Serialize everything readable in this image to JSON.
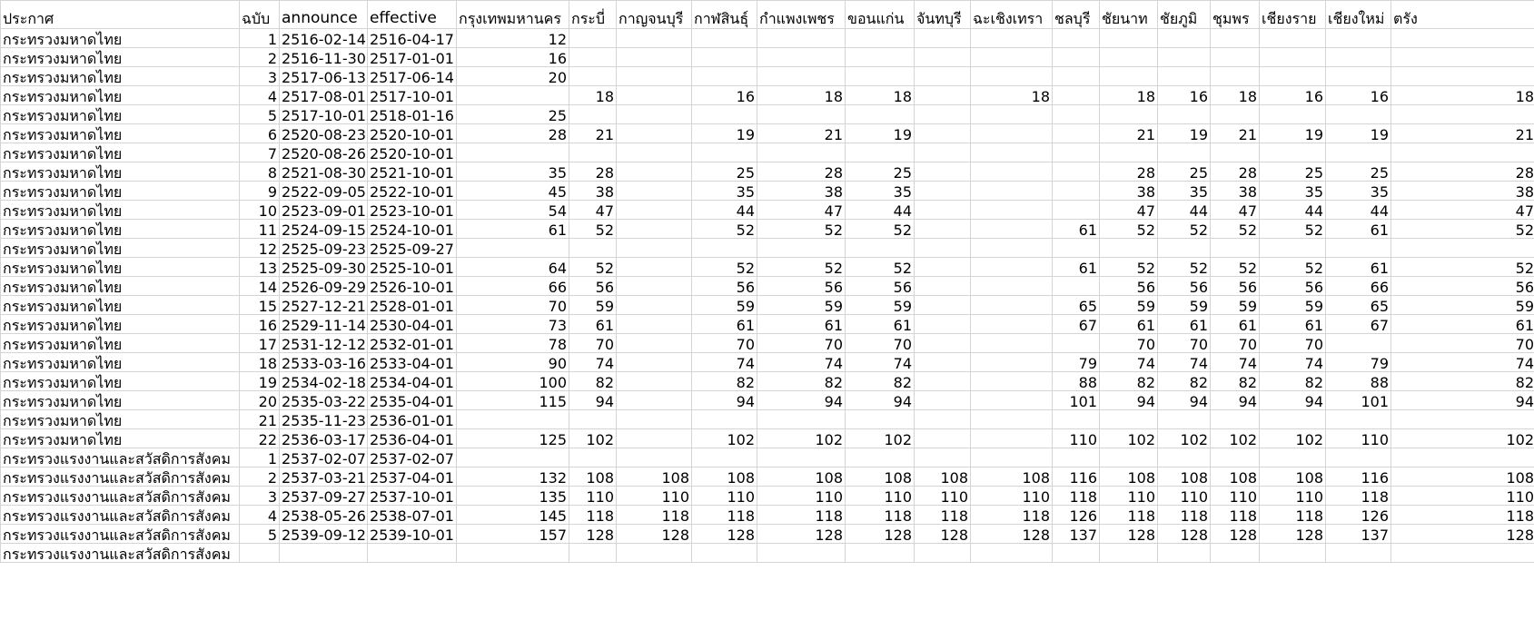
{
  "sheet": {
    "columns": [
      "ประกาศ",
      "ฉบับ",
      "announce",
      "effective",
      "กรุงเทพมหานคร",
      "กระบี่",
      "กาญจนบุรี",
      "กาฬสินธุ์",
      "กำแพงเพชร",
      "ขอนแก่น",
      "จันทบุรี",
      "ฉะเชิงเทรา",
      "ชลบุรี",
      "ชัยนาท",
      "ชัยภูมิ",
      "ชุมพร",
      "เชียงราย",
      "เชียงใหม่",
      "ตรัง"
    ],
    "rows": [
      [
        "กระทรวงมหาดไทย",
        "1",
        "2516-02-14",
        "2516-04-17",
        "12",
        "",
        "",
        "",
        "",
        "",
        "",
        "",
        "",
        "",
        "",
        "",
        "",
        "",
        ""
      ],
      [
        "กระทรวงมหาดไทย",
        "2",
        "2516-11-30",
        "2517-01-01",
        "16",
        "",
        "",
        "",
        "",
        "",
        "",
        "",
        "",
        "",
        "",
        "",
        "",
        "",
        ""
      ],
      [
        "กระทรวงมหาดไทย",
        "3",
        "2517-06-13",
        "2517-06-14",
        "20",
        "",
        "",
        "",
        "",
        "",
        "",
        "",
        "",
        "",
        "",
        "",
        "",
        "",
        ""
      ],
      [
        "กระทรวงมหาดไทย",
        "4",
        "2517-08-01",
        "2517-10-01",
        "",
        "18",
        "",
        "16",
        "18",
        "18",
        "",
        "18",
        "",
        "18",
        "16",
        "18",
        "16",
        "16",
        "18"
      ],
      [
        "กระทรวงมหาดไทย",
        "5",
        "2517-10-01",
        "2518-01-16",
        "25",
        "",
        "",
        "",
        "",
        "",
        "",
        "",
        "",
        "",
        "",
        "",
        "",
        "",
        ""
      ],
      [
        "กระทรวงมหาดไทย",
        "6",
        "2520-08-23",
        "2520-10-01",
        "28",
        "21",
        "",
        "19",
        "21",
        "19",
        "",
        "",
        "",
        "21",
        "19",
        "21",
        "19",
        "19",
        "21"
      ],
      [
        "กระทรวงมหาดไทย",
        "7",
        "2520-08-26",
        "2520-10-01",
        "",
        "",
        "",
        "",
        "",
        "",
        "",
        "",
        "",
        "",
        "",
        "",
        "",
        "",
        ""
      ],
      [
        "กระทรวงมหาดไทย",
        "8",
        "2521-08-30",
        "2521-10-01",
        "35",
        "28",
        "",
        "25",
        "28",
        "25",
        "",
        "",
        "",
        "28",
        "25",
        "28",
        "25",
        "25",
        "28"
      ],
      [
        "กระทรวงมหาดไทย",
        "9",
        "2522-09-05",
        "2522-10-01",
        "45",
        "38",
        "",
        "35",
        "38",
        "35",
        "",
        "",
        "",
        "38",
        "35",
        "38",
        "35",
        "35",
        "38"
      ],
      [
        "กระทรวงมหาดไทย",
        "10",
        "2523-09-01",
        "2523-10-01",
        "54",
        "47",
        "",
        "44",
        "47",
        "44",
        "",
        "",
        "",
        "47",
        "44",
        "47",
        "44",
        "44",
        "47"
      ],
      [
        "กระทรวงมหาดไทย",
        "11",
        "2524-09-15",
        "2524-10-01",
        "61",
        "52",
        "",
        "52",
        "52",
        "52",
        "",
        "",
        "61",
        "52",
        "52",
        "52",
        "52",
        "61",
        "52"
      ],
      [
        "กระทรวงมหาดไทย",
        "12",
        "2525-09-23",
        "2525-09-27",
        "",
        "",
        "",
        "",
        "",
        "",
        "",
        "",
        "",
        "",
        "",
        "",
        "",
        "",
        ""
      ],
      [
        "กระทรวงมหาดไทย",
        "13",
        "2525-09-30",
        "2525-10-01",
        "64",
        "52",
        "",
        "52",
        "52",
        "52",
        "",
        "",
        "61",
        "52",
        "52",
        "52",
        "52",
        "61",
        "52"
      ],
      [
        "กระทรวงมหาดไทย",
        "14",
        "2526-09-29",
        "2526-10-01",
        "66",
        "56",
        "",
        "56",
        "56",
        "56",
        "",
        "",
        "",
        "56",
        "56",
        "56",
        "56",
        "66",
        "56"
      ],
      [
        "กระทรวงมหาดไทย",
        "15",
        "2527-12-21",
        "2528-01-01",
        "70",
        "59",
        "",
        "59",
        "59",
        "59",
        "",
        "",
        "65",
        "59",
        "59",
        "59",
        "59",
        "65",
        "59"
      ],
      [
        "กระทรวงมหาดไทย",
        "16",
        "2529-11-14",
        "2530-04-01",
        "73",
        "61",
        "",
        "61",
        "61",
        "61",
        "",
        "",
        "67",
        "61",
        "61",
        "61",
        "61",
        "67",
        "61"
      ],
      [
        "กระทรวงมหาดไทย",
        "17",
        "2531-12-12",
        "2532-01-01",
        "78",
        "70",
        "",
        "70",
        "70",
        "70",
        "",
        "",
        "",
        "70",
        "70",
        "70",
        "70",
        "",
        "70"
      ],
      [
        "กระทรวงมหาดไทย",
        "18",
        "2533-03-16",
        "2533-04-01",
        "90",
        "74",
        "",
        "74",
        "74",
        "74",
        "",
        "",
        "79",
        "74",
        "74",
        "74",
        "74",
        "79",
        "74"
      ],
      [
        "กระทรวงมหาดไทย",
        "19",
        "2534-02-18",
        "2534-04-01",
        "100",
        "82",
        "",
        "82",
        "82",
        "82",
        "",
        "",
        "88",
        "82",
        "82",
        "82",
        "82",
        "88",
        "82"
      ],
      [
        "กระทรวงมหาดไทย",
        "20",
        "2535-03-22",
        "2535-04-01",
        "115",
        "94",
        "",
        "94",
        "94",
        "94",
        "",
        "",
        "101",
        "94",
        "94",
        "94",
        "94",
        "101",
        "94"
      ],
      [
        "กระทรวงมหาดไทย",
        "21",
        "2535-11-23",
        "2536-01-01",
        "",
        "",
        "",
        "",
        "",
        "",
        "",
        "",
        "",
        "",
        "",
        "",
        "",
        "",
        ""
      ],
      [
        "กระทรวงมหาดไทย",
        "22",
        "2536-03-17",
        "2536-04-01",
        "125",
        "102",
        "",
        "102",
        "102",
        "102",
        "",
        "",
        "110",
        "102",
        "102",
        "102",
        "102",
        "110",
        "102"
      ],
      [
        "กระทรวงแรงงานและสวัสดิการสังคม",
        "1",
        "2537-02-07",
        "2537-02-07",
        "",
        "",
        "",
        "",
        "",
        "",
        "",
        "",
        "",
        "",
        "",
        "",
        "",
        "",
        ""
      ],
      [
        "กระทรวงแรงงานและสวัสดิการสังคม",
        "2",
        "2537-03-21",
        "2537-04-01",
        "132",
        "108",
        "108",
        "108",
        "108",
        "108",
        "108",
        "108",
        "116",
        "108",
        "108",
        "108",
        "108",
        "116",
        "108"
      ],
      [
        "กระทรวงแรงงานและสวัสดิการสังคม",
        "3",
        "2537-09-27",
        "2537-10-01",
        "135",
        "110",
        "110",
        "110",
        "110",
        "110",
        "110",
        "110",
        "118",
        "110",
        "110",
        "110",
        "110",
        "118",
        "110"
      ],
      [
        "กระทรวงแรงงานและสวัสดิการสังคม",
        "4",
        "2538-05-26",
        "2538-07-01",
        "145",
        "118",
        "118",
        "118",
        "118",
        "118",
        "118",
        "118",
        "126",
        "118",
        "118",
        "118",
        "118",
        "126",
        "118"
      ],
      [
        "กระทรวงแรงงานและสวัสดิการสังคม",
        "5",
        "2539-09-12",
        "2539-10-01",
        "157",
        "128",
        "128",
        "128",
        "128",
        "128",
        "128",
        "128",
        "137",
        "128",
        "128",
        "128",
        "128",
        "137",
        "128"
      ],
      [
        "กระทรวงแรงงานและสวัสดิการสังคม",
        "",
        "",
        "",
        "",
        "",
        "",
        "",
        "",
        "",
        "",
        "",
        "",
        "",
        "",
        "",
        "",
        "",
        ""
      ]
    ]
  }
}
